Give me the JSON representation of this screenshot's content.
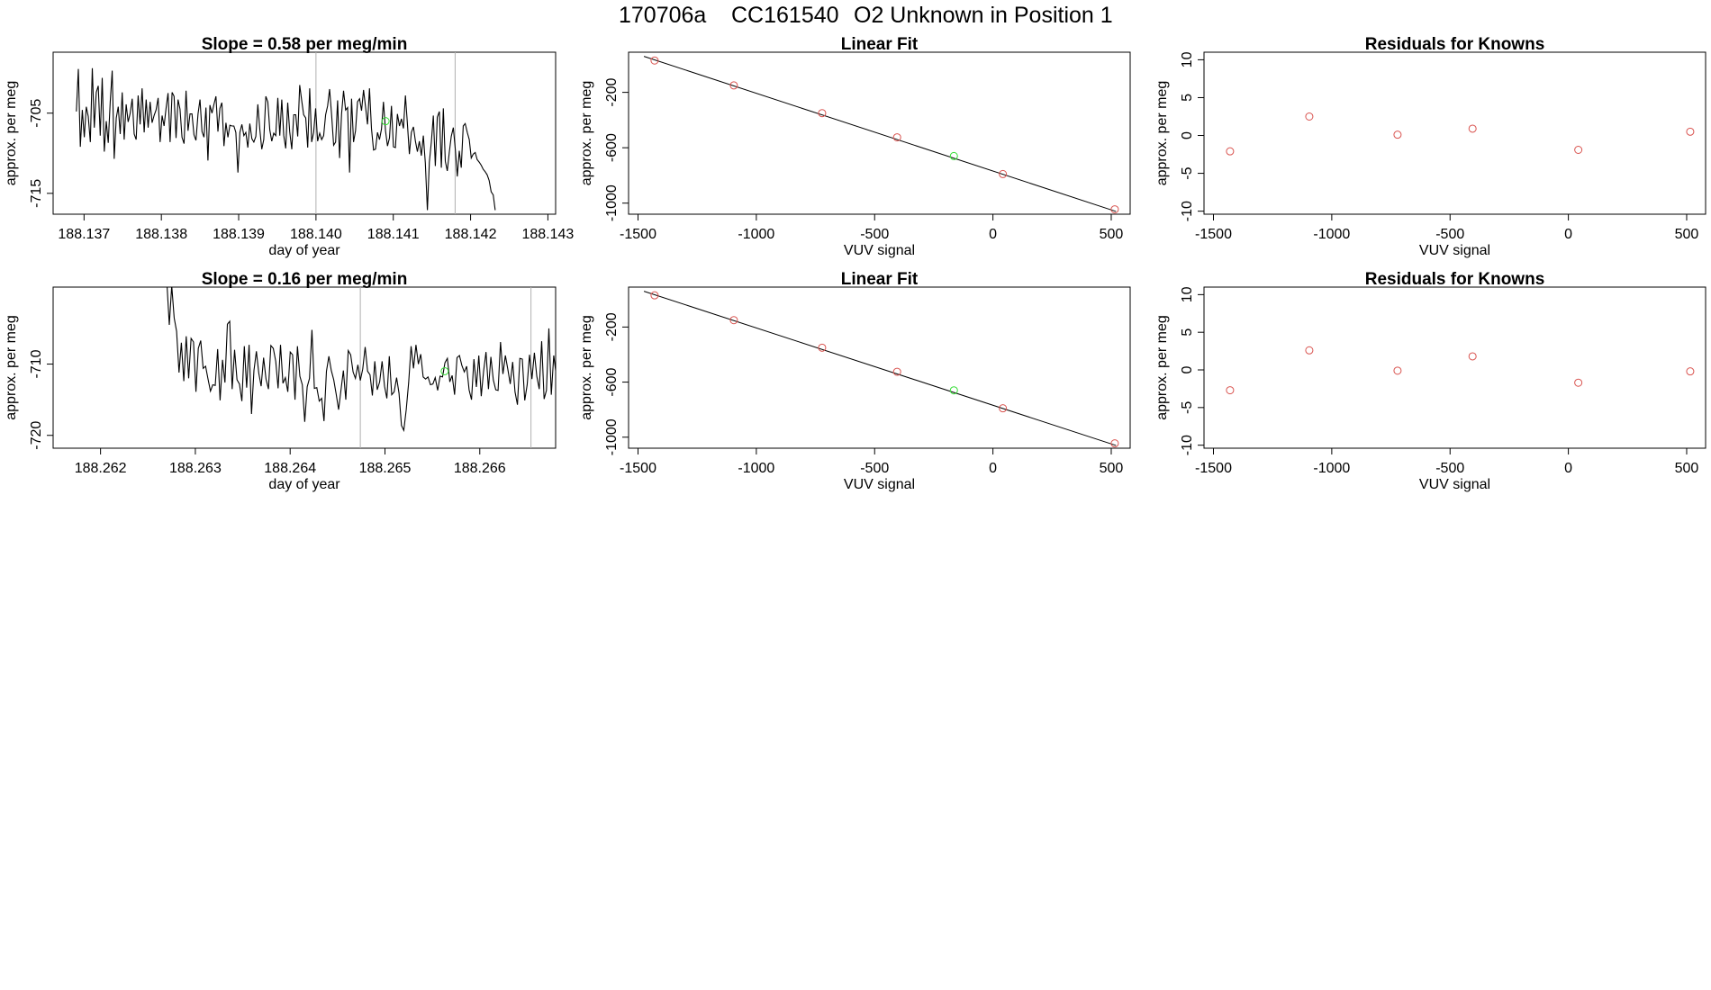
{
  "header": {
    "run_id": "170706a",
    "tank_id": "CC161540",
    "description": "O2 Unknown in Position  1"
  },
  "chart_data": [
    {
      "id": "row1-timeseries",
      "type": "line",
      "title": "Slope =  0.58  per meg/min",
      "xlabel": "day of year",
      "ylabel": "approx. per meg",
      "xlim": [
        188.1366,
        188.1431
      ],
      "ylim": [
        -717.6,
        -697.4
      ],
      "x_ticks": [
        188.137,
        188.138,
        188.139,
        188.14,
        188.141,
        188.142,
        188.143
      ],
      "x_tick_labels": [
        "188.137",
        "188.138",
        "188.139",
        "188.140",
        "188.141",
        "188.142",
        "188.143"
      ],
      "y_ticks": [
        -715,
        -705
      ],
      "y_tick_labels": [
        "-715",
        "-705"
      ],
      "series": [
        {
          "x_start": 188.1369,
          "x_step": 2.58e-05,
          "values": [
            -704.8,
            -699.5,
            -709.2,
            -704.6,
            -708.0,
            -704.2,
            -705.4,
            -708.6,
            -699.4,
            -706.8,
            -702.4,
            -701.6,
            -707.8,
            -700.6,
            -709.8,
            -706.0,
            -708.7,
            -703.6,
            -699.7,
            -710.7,
            -705.6,
            -704.2,
            -707.6,
            -702.4,
            -708.3,
            -703.9,
            -706.1,
            -705.0,
            -703.2,
            -707.6,
            -708.3,
            -702.8,
            -706.4,
            -701.9,
            -707.4,
            -703.3,
            -706.8,
            -703.6,
            -706.2,
            -705.3,
            -704.6,
            -703.1,
            -708.6,
            -705.3,
            -706.6,
            -704.4,
            -702.5,
            -708.6,
            -702.4,
            -702.9,
            -708.1,
            -703.3,
            -704.5,
            -708.0,
            -708.8,
            -702.2,
            -707.2,
            -705.1,
            -705.1,
            -707.7,
            -708.4,
            -705.1,
            -703.3,
            -707.3,
            -708.0,
            -704.3,
            -710.9,
            -704.0,
            -705.0,
            -703.9,
            -702.9,
            -707.3,
            -704.4,
            -703.7,
            -709.1,
            -706.2,
            -708.0,
            -706.5,
            -706.6,
            -706.6,
            -707.4,
            -712.4,
            -707.4,
            -706.4,
            -707.8,
            -707.4,
            -709.3,
            -706.3,
            -708.2,
            -708.6,
            -707.9,
            -703.9,
            -707.0,
            -709.5,
            -708.3,
            -702.9,
            -703.6,
            -707.1,
            -708.5,
            -707.5,
            -707.8,
            -703.1,
            -707.8,
            -703.3,
            -707.8,
            -709.4,
            -703.7,
            -707.3,
            -709.5,
            -705.2,
            -705.2,
            -707.9,
            -701.5,
            -703.4,
            -705.2,
            -705.6,
            -709.3,
            -701.9,
            -708.6,
            -707.4,
            -704.4,
            -708.5,
            -707.5,
            -708.3,
            -707.8,
            -705.2,
            -704.1,
            -702.0,
            -705.3,
            -709.0,
            -708.6,
            -703.4,
            -710.6,
            -705.1,
            -702.2,
            -704.6,
            -704.3,
            -712.4,
            -703.2,
            -708.6,
            -707.2,
            -703.6,
            -703.2,
            -704.7,
            -702.1,
            -704.2,
            -706.4,
            -701.9,
            -706.9,
            -709.6,
            -709.5,
            -707.4,
            -708.3,
            -707.0,
            -703.6,
            -707.2,
            -709.1,
            -708.1,
            -704.1,
            -709.2,
            -709.3,
            -705.1,
            -706.6,
            -705.7,
            -706.9,
            -702.8,
            -706.3,
            -710.1,
            -707.4,
            -706.7,
            -708.5,
            -709.8,
            -708.5,
            -710.3,
            -707.8,
            -711.2,
            -717.1,
            -711.1,
            -708.6,
            -705.3,
            -711.6,
            -705.5,
            -704.8,
            -711.8,
            -704.4,
            -711.0,
            -712.2,
            -709.9,
            -707.9,
            -706.8,
            -709.5,
            -712.9,
            -709.7,
            -711.8,
            -706.6,
            -706.3,
            -707.4,
            -708.3,
            -710.6,
            -710.1,
            -709.9,
            -710.8,
            -711.1,
            -711.5,
            -712.0,
            -712.3,
            -712.7,
            -713.4,
            -714.8,
            -715.2,
            -717.1
          ]
        }
      ],
      "vlines": [
        188.14,
        188.1418
      ],
      "marker": {
        "x": 188.1409,
        "y": -706.0
      }
    },
    {
      "id": "row1-linear-fit",
      "type": "scatter",
      "title": "Linear Fit",
      "xlabel": "VUV signal",
      "ylabel": "approx. per meg",
      "xlim": [
        -1540,
        580
      ],
      "ylim": [
        -1080,
        90
      ],
      "x_ticks": [
        -1500,
        -1000,
        -500,
        0,
        500
      ],
      "x_tick_labels": [
        "-1500",
        "-1000",
        "-500",
        "0",
        "500"
      ],
      "y_ticks": [
        -1000,
        -600,
        -200
      ],
      "y_tick_labels": [
        "-1000",
        "-600",
        "-200"
      ],
      "x": [
        -1430,
        -1095,
        -722,
        -405,
        42,
        515
      ],
      "y": [
        30,
        -150,
        -350,
        -525,
        -790,
        -1045
      ],
      "unknown_point": {
        "x": -165,
        "y": -660
      },
      "fit_line": {
        "x": [
          -1475,
          520
        ],
        "y": [
          60,
          -1060
        ]
      }
    },
    {
      "id": "row1-residuals",
      "type": "scatter",
      "title": "Residuals for Knowns",
      "xlabel": "VUV signal",
      "ylabel": "approx. per meg",
      "xlim": [
        -1540,
        580
      ],
      "ylim": [
        -10.4,
        11.0
      ],
      "x_ticks": [
        -1500,
        -1000,
        -500,
        0,
        500
      ],
      "x_tick_labels": [
        "-1500",
        "-1000",
        "-500",
        "0",
        "500"
      ],
      "y_ticks": [
        -10,
        -5,
        0,
        5,
        10
      ],
      "y_tick_labels": [
        "-10",
        "-5",
        "0",
        "5",
        "10"
      ],
      "x": [
        -1430,
        -1095,
        -722,
        -405,
        42,
        515
      ],
      "y": [
        -2.1,
        2.5,
        0.1,
        0.9,
        -1.9,
        0.5
      ]
    },
    {
      "id": "row2-timeseries",
      "type": "line",
      "title": "Slope =  0.16  per meg/min",
      "xlabel": "day of year",
      "ylabel": "approx. per meg",
      "xlim": [
        188.2615,
        188.2668
      ],
      "ylim": [
        -721.8,
        -699.2
      ],
      "x_ticks": [
        188.262,
        188.263,
        188.264,
        188.265,
        188.266
      ],
      "x_tick_labels": [
        "188.262",
        "188.263",
        "188.264",
        "188.265",
        "188.266"
      ],
      "y_ticks": [
        -720,
        -710
      ],
      "y_tick_labels": [
        "-720",
        "-710"
      ],
      "series": [
        {
          "x_start": 188.2627,
          "x_step": 2.55e-05,
          "values": [
            -698.5,
            -704.5,
            -699.0,
            -703.5,
            -705.4,
            -711.2,
            -707.0,
            -712.4,
            -706.1,
            -712.0,
            -706.4,
            -706.9,
            -713.9,
            -707.8,
            -706.7,
            -710.6,
            -710.3,
            -712.1,
            -713.8,
            -712.9,
            -713.0,
            -707.9,
            -715.1,
            -709.4,
            -712.6,
            -704.4,
            -704.0,
            -713.5,
            -708.0,
            -712.2,
            -712.8,
            -715.2,
            -707.5,
            -713.3,
            -707.3,
            -717.0,
            -710.9,
            -708.2,
            -711.3,
            -713.1,
            -709.1,
            -712.1,
            -713.5,
            -707.4,
            -707.8,
            -709.6,
            -713.4,
            -707.3,
            -712.7,
            -711.9,
            -713.9,
            -708.3,
            -708.7,
            -715.0,
            -707.5,
            -711.7,
            -712.9,
            -718.1,
            -713.2,
            -712.0,
            -705.2,
            -713.4,
            -713.3,
            -715.2,
            -714.8,
            -718.0,
            -711.0,
            -708.9,
            -710.9,
            -712.2,
            -714.2,
            -716.4,
            -713.7,
            -710.9,
            -715.0,
            -708.1,
            -708.7,
            -711.1,
            -712.0,
            -710.1,
            -712.3,
            -710.7,
            -707.6,
            -711.0,
            -711.5,
            -714.4,
            -709.6,
            -713.6,
            -712.5,
            -709.6,
            -713.1,
            -714.8,
            -708.9,
            -714.3,
            -713.9,
            -711.9,
            -714.1,
            -718.6,
            -719.3,
            -716.4,
            -712.6,
            -707.5,
            -710.6,
            -707.3,
            -710.0,
            -708.6,
            -711.8,
            -712.1,
            -711.8,
            -712.9,
            -712.8,
            -711.9,
            -713.7,
            -711.7,
            -711.8,
            -709.8,
            -709.2,
            -712.5,
            -711.6,
            -714.3,
            -709.1,
            -708.8,
            -710.2,
            -711.1,
            -710.3,
            -713.6,
            -715.0,
            -709.3,
            -713.2,
            -708.8,
            -714.5,
            -711.0,
            -708.3,
            -713.5,
            -709.0,
            -712.2,
            -713.6,
            -713.7,
            -706.9,
            -711.4,
            -708.8,
            -710.7,
            -712.8,
            -709.7,
            -713.9,
            -715.7,
            -709.2,
            -709.3,
            -715.1,
            -712.9,
            -708.7,
            -712.1,
            -708.4,
            -711.7,
            -713.5,
            -706.8,
            -714.9,
            -713.7,
            -705.0,
            -714.3,
            -708.8,
            -711.5,
            -707.3,
            -713.2,
            -712.3,
            -709.0,
            -713.4,
            -711.8,
            -710.9,
            -706.5,
            -713.9,
            -711.0,
            -711.4,
            -708.3,
            -712.3,
            -713.8,
            -712.9,
            -708.6,
            -715.9,
            -711.6,
            -712.7,
            -706.6,
            -707.0,
            -711.8,
            -714.7,
            -713.2,
            -712.5,
            -715.5,
            -712.5,
            -714.8,
            -716.7,
            -715.1,
            -716.3,
            -715.2
          ]
        }
      ],
      "vlines": [
        188.26474,
        188.26654
      ],
      "marker": {
        "x": 188.26563,
        "y": -711.0
      }
    },
    {
      "id": "row2-linear-fit",
      "type": "scatter",
      "title": "Linear Fit",
      "xlabel": "VUV signal",
      "ylabel": "approx. per meg",
      "xlim": [
        -1540,
        580
      ],
      "ylim": [
        -1080,
        90
      ],
      "x_ticks": [
        -1500,
        -1000,
        -500,
        0,
        500
      ],
      "x_tick_labels": [
        "-1500",
        "-1000",
        "-500",
        "0",
        "500"
      ],
      "y_ticks": [
        -1000,
        -600,
        -200
      ],
      "y_tick_labels": [
        "-1000",
        "-600",
        "-200"
      ],
      "x": [
        -1430,
        -1095,
        -722,
        -405,
        42,
        515
      ],
      "y": [
        30,
        -150,
        -350,
        -525,
        -790,
        -1045
      ],
      "unknown_point": {
        "x": -165,
        "y": -660
      },
      "fit_line": {
        "x": [
          -1475,
          520
        ],
        "y": [
          60,
          -1060
        ]
      }
    },
    {
      "id": "row2-residuals",
      "type": "scatter",
      "title": "Residuals for Knowns",
      "xlabel": "VUV signal",
      "ylabel": "approx. per meg",
      "xlim": [
        -1540,
        580
      ],
      "ylim": [
        -10.4,
        11.0
      ],
      "x_ticks": [
        -1500,
        -1000,
        -500,
        0,
        500
      ],
      "x_tick_labels": [
        "-1500",
        "-1000",
        "-500",
        "0",
        "500"
      ],
      "y_ticks": [
        -10,
        -5,
        0,
        5,
        10
      ],
      "y_tick_labels": [
        "-10",
        "-5",
        "0",
        "5",
        "10"
      ],
      "x": [
        -1430,
        -1095,
        -722,
        -405,
        42,
        515
      ],
      "y": [
        -2.7,
        2.6,
        -0.1,
        1.8,
        -1.7,
        -0.2
      ]
    }
  ],
  "colors": {
    "known_point": "#d9534f",
    "unknown_point": "#33dd33",
    "line": "#000000",
    "vline": "#b0b0b0"
  }
}
